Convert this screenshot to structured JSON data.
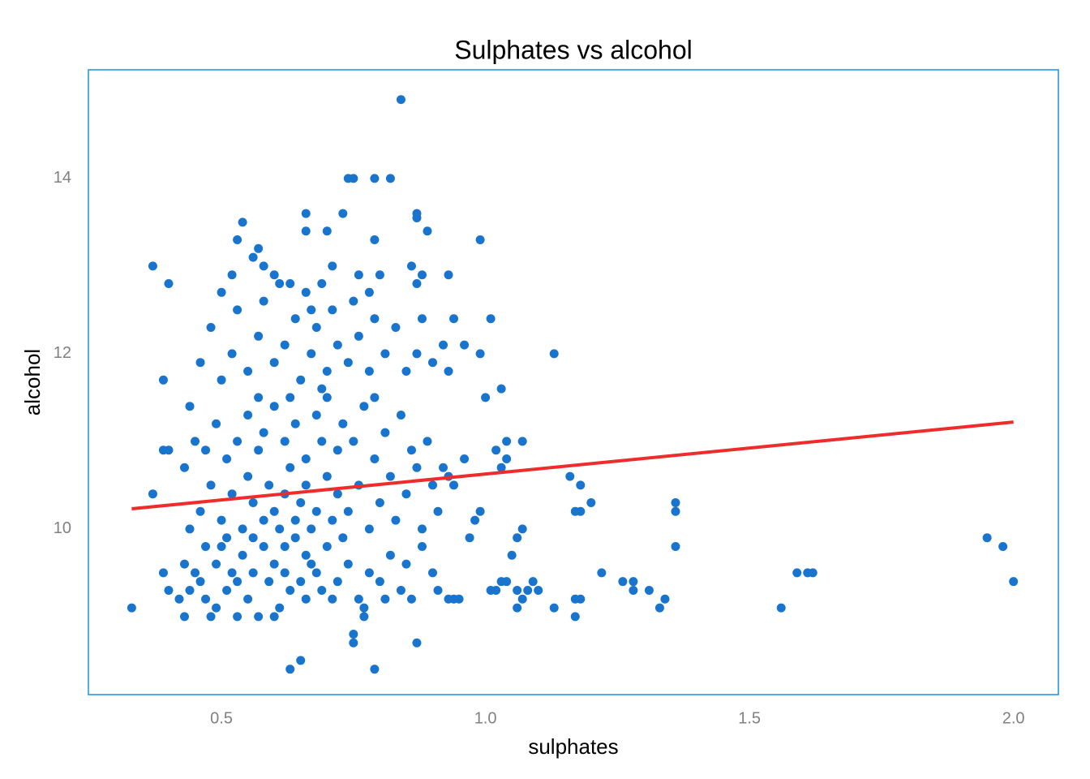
{
  "chart_data": {
    "type": "scatter",
    "title": "Sulphates vs alcohol",
    "x_label": "sulphates",
    "y_label": "alcohol",
    "color": "#1874cd",
    "x": [
      0.33,
      0.37,
      0.37,
      0.39,
      0.39,
      0.4,
      0.4,
      0.39,
      0.4,
      0.84,
      0.74,
      0.75,
      0.79,
      0.82,
      0.66,
      0.73,
      0.87,
      0.87,
      0.54,
      0.66,
      0.7,
      0.89,
      0.53,
      0.79,
      0.99,
      0.57,
      0.56,
      0.86,
      0.93,
      0.88,
      0.87,
      1.01,
      0.94,
      0.96,
      0.99,
      1.13,
      0.93,
      1.03,
      1.0,
      1.04,
      1.07,
      1.02,
      1.04,
      1.03,
      1.16,
      1.18,
      1.17,
      1.18,
      1.2,
      1.36,
      1.36,
      0.99,
      0.98,
      1.36,
      1.06,
      1.07,
      1.05,
      1.95,
      1.98,
      2.0,
      1.59,
      1.61,
      1.62,
      1.22,
      1.26,
      1.28,
      1.28,
      1.31,
      1.34,
      1.33,
      1.56,
      1.17,
      1.18,
      1.17,
      1.13,
      1.09,
      1.1,
      1.03,
      1.04,
      1.06,
      1.07,
      1.08,
      1.06,
      1.02,
      1.01,
      0.95,
      0.93,
      0.63,
      0.65,
      0.79,
      0.75,
      0.75,
      0.87,
      0.77,
      0.43,
      0.45,
      0.46,
      0.47,
      0.48,
      0.49,
      0.5,
      0.51,
      0.52,
      0.53,
      0.54,
      0.55,
      0.56,
      0.57,
      0.58,
      0.59,
      0.6,
      0.61,
      0.62,
      0.63,
      0.64,
      0.65,
      0.66,
      0.67,
      0.68,
      0.69,
      0.7,
      0.72,
      0.74,
      0.76,
      0.78,
      0.8,
      0.82,
      0.84,
      0.86,
      0.88,
      0.9,
      0.44,
      0.46,
      0.48,
      0.5,
      0.52,
      0.54,
      0.55,
      0.56,
      0.58,
      0.59,
      0.6,
      0.61,
      0.62,
      0.63,
      0.64,
      0.65,
      0.66,
      0.67,
      0.68,
      0.7,
      0.71,
      0.72,
      0.74,
      0.76,
      0.78,
      0.8,
      0.83,
      0.85,
      0.88,
      0.91,
      0.94,
      0.43,
      0.45,
      0.47,
      0.49,
      0.51,
      0.53,
      0.55,
      0.57,
      0.58,
      0.6,
      0.62,
      0.64,
      0.66,
      0.68,
      0.69,
      0.7,
      0.72,
      0.73,
      0.75,
      0.77,
      0.79,
      0.81,
      0.84,
      0.86,
      0.89,
      0.92,
      0.44,
      0.46,
      0.48,
      0.5,
      0.52,
      0.53,
      0.55,
      0.57,
      0.58,
      0.6,
      0.61,
      0.62,
      0.64,
      0.65,
      0.66,
      0.67,
      0.68,
      0.7,
      0.71,
      0.72,
      0.74,
      0.75,
      0.76,
      0.78,
      0.79,
      0.81,
      0.83,
      0.85,
      0.87,
      0.88,
      0.9,
      0.92,
      0.5,
      0.52,
      0.58,
      0.6,
      0.63,
      0.67,
      0.69,
      0.71,
      0.76,
      0.78,
      0.8,
      0.42,
      0.43,
      0.44,
      0.47,
      0.49,
      0.51,
      0.53,
      0.56,
      0.6,
      0.62,
      0.66,
      0.71,
      0.73,
      0.77,
      0.81,
      0.85,
      0.91,
      0.94,
      0.97,
      0.96,
      0.93,
      0.9,
      0.82,
      0.87,
      0.57,
      0.63,
      0.69,
      0.79
    ],
    "y": [
      9.1,
      13.0,
      10.4,
      11.7,
      10.9,
      12.8,
      10.9,
      9.5,
      9.3,
      14.9,
      14.0,
      14.0,
      14.0,
      14.0,
      13.6,
      13.6,
      13.6,
      13.55,
      13.5,
      13.4,
      13.4,
      13.4,
      13.3,
      13.3,
      13.3,
      13.2,
      13.1,
      13.0,
      12.9,
      12.9,
      12.8,
      12.4,
      12.4,
      12.1,
      12.0,
      12.0,
      11.8,
      11.6,
      11.5,
      11.0,
      11.0,
      10.9,
      10.8,
      10.7,
      10.6,
      10.5,
      10.2,
      10.2,
      10.3,
      10.3,
      10.2,
      10.2,
      10.1,
      9.8,
      9.9,
      10.0,
      9.7,
      9.9,
      9.8,
      9.4,
      9.5,
      9.5,
      9.5,
      9.5,
      9.4,
      9.4,
      9.3,
      9.3,
      9.2,
      9.1,
      9.1,
      9.0,
      9.2,
      9.2,
      9.1,
      9.4,
      9.3,
      9.4,
      9.4,
      9.3,
      9.2,
      9.3,
      9.1,
      9.3,
      9.3,
      9.2,
      9.2,
      8.4,
      8.5,
      8.4,
      8.7,
      8.8,
      8.7,
      9.0,
      9.0,
      9.5,
      9.4,
      9.2,
      9.0,
      9.6,
      9.8,
      9.3,
      9.5,
      9.4,
      9.7,
      9.2,
      9.5,
      9.0,
      9.8,
      9.4,
      9.6,
      9.1,
      9.5,
      9.3,
      9.9,
      9.4,
      9.2,
      9.6,
      9.5,
      9.3,
      9.8,
      9.4,
      9.6,
      9.2,
      9.5,
      9.4,
      9.7,
      9.3,
      9.2,
      9.8,
      9.5,
      10.0,
      10.2,
      10.5,
      10.1,
      10.4,
      10.0,
      10.6,
      10.3,
      10.1,
      10.5,
      10.2,
      10.0,
      10.4,
      10.7,
      10.1,
      10.3,
      10.5,
      10.0,
      10.2,
      10.6,
      10.1,
      10.4,
      10.2,
      10.5,
      10.0,
      10.3,
      10.1,
      10.4,
      10.0,
      10.2,
      10.5,
      10.7,
      11.0,
      10.9,
      11.2,
      10.8,
      11.0,
      11.3,
      10.9,
      11.1,
      11.4,
      11.0,
      11.2,
      10.8,
      11.3,
      11.0,
      11.5,
      10.9,
      11.2,
      11.0,
      11.4,
      10.8,
      11.1,
      11.3,
      10.9,
      11.0,
      10.7,
      11.4,
      11.9,
      12.3,
      11.7,
      12.0,
      12.5,
      11.8,
      12.2,
      12.6,
      11.9,
      12.8,
      12.1,
      12.4,
      11.7,
      12.7,
      12.0,
      12.3,
      11.8,
      12.5,
      12.1,
      11.9,
      12.6,
      12.2,
      11.8,
      12.4,
      12.0,
      12.3,
      11.8,
      12.0,
      12.4,
      11.9,
      12.1,
      12.7,
      12.9,
      13.0,
      12.9,
      12.8,
      12.5,
      12.8,
      13.0,
      12.9,
      12.7,
      12.9,
      9.2,
      9.6,
      9.3,
      9.8,
      9.1,
      9.9,
      9.0,
      9.9,
      9.0,
      9.8,
      9.7,
      9.2,
      9.9,
      9.1,
      9.2,
      9.6,
      9.3,
      9.2,
      9.9,
      10.8,
      10.6,
      10.5,
      10.6,
      10.7,
      11.5,
      11.5,
      11.6,
      11.5
    ],
    "trend": {
      "x": [
        0.33,
        2.0
      ],
      "y": [
        10.23,
        11.22
      ],
      "color": "#ee2c2c"
    },
    "xlim": [
      0.248,
      2.085
    ],
    "ylim": [
      8.11,
      15.24
    ],
    "xticks": [
      0.5,
      {
        "value": 1.0,
        "label": "1.0"
      },
      1.5,
      {
        "value": 2.0,
        "label": "2.0"
      }
    ],
    "yticks": [
      10,
      12,
      14
    ],
    "grid": false,
    "border_color": "#1a8fe0"
  }
}
